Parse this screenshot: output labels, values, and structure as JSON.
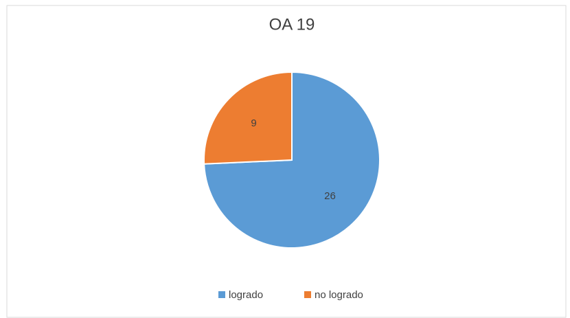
{
  "chart_data": {
    "type": "pie",
    "title": "OA 19",
    "categories": [
      "logrado",
      "no logrado"
    ],
    "values": [
      26,
      9
    ],
    "colors": [
      "#5b9bd5",
      "#ed7d31"
    ],
    "legend": "bottom"
  }
}
